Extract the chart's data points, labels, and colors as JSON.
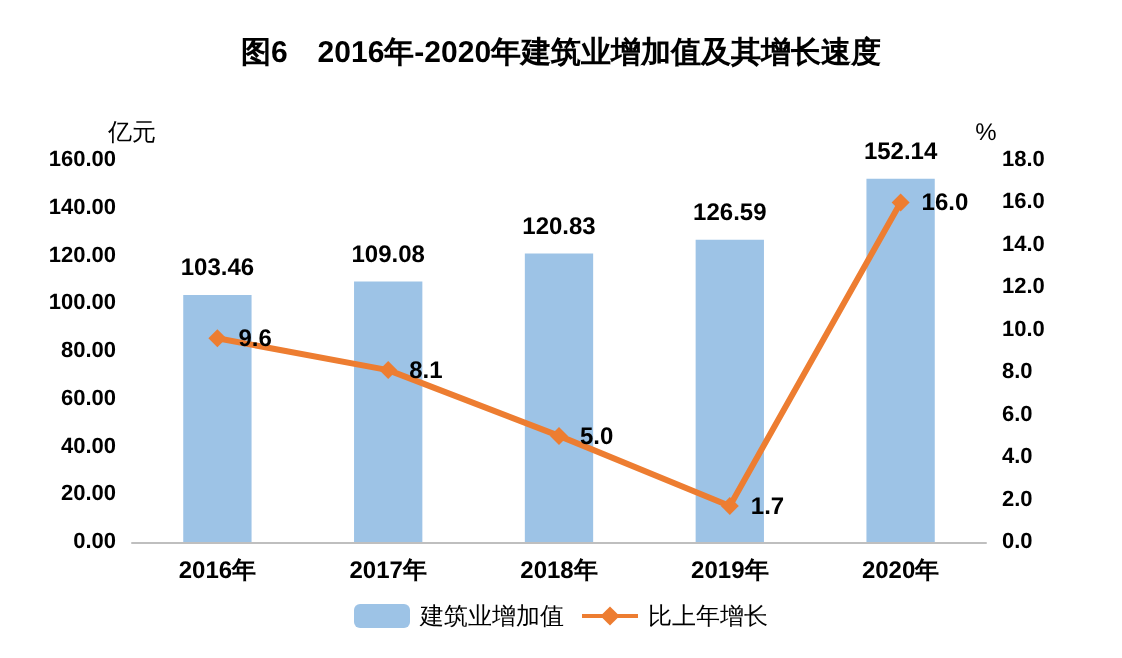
{
  "chart_data": {
    "type": "bar",
    "title": "图6　2016年-2020年建筑业增加值及其增长速度",
    "ylabel": "亿元",
    "y2label": "%",
    "categories": [
      "2016年",
      "2017年",
      "2018年",
      "2019年",
      "2020年"
    ],
    "series": [
      {
        "name": "建筑业增加值",
        "color": "#9dc3e6",
        "values": [
          103.46,
          109.08,
          120.83,
          126.59,
          152.14
        ],
        "value_labels": [
          "103.46",
          "109.08",
          "120.83",
          "126.59",
          "152.14"
        ]
      },
      {
        "name": "比上年增长",
        "type": "line",
        "axis": "y2",
        "color": "#ed7d31",
        "marker": "diamond",
        "values": [
          9.6,
          8.1,
          5.0,
          1.7,
          16.0
        ],
        "value_labels": [
          "9.6",
          "8.1",
          "5.0",
          "1.7",
          "16.0"
        ]
      }
    ],
    "ylim": [
      0,
      160
    ],
    "yticks": [
      {
        "value": 0,
        "label": "0.00"
      },
      {
        "value": 20,
        "label": "20.00"
      },
      {
        "value": 40,
        "label": "40.00"
      },
      {
        "value": 60,
        "label": "60.00"
      },
      {
        "value": 80,
        "label": "80.00"
      },
      {
        "value": 100,
        "label": "100.00"
      },
      {
        "value": 120,
        "label": "120.00"
      },
      {
        "value": 140,
        "label": "140.00"
      },
      {
        "value": 160,
        "label": "160.00"
      }
    ],
    "y2lim": [
      0,
      18
    ],
    "y2ticks": [
      {
        "value": 0,
        "label": "0.0"
      },
      {
        "value": 2,
        "label": "2.0"
      },
      {
        "value": 4,
        "label": "4.0"
      },
      {
        "value": 6,
        "label": "6.0"
      },
      {
        "value": 8,
        "label": "8.0"
      },
      {
        "value": 10,
        "label": "10.0"
      },
      {
        "value": 12,
        "label": "12.0"
      },
      {
        "value": 14,
        "label": "14.0"
      },
      {
        "value": 16,
        "label": "16.0"
      },
      {
        "value": 18,
        "label": "18.0"
      }
    ],
    "grid": false,
    "legend": "bottom"
  }
}
